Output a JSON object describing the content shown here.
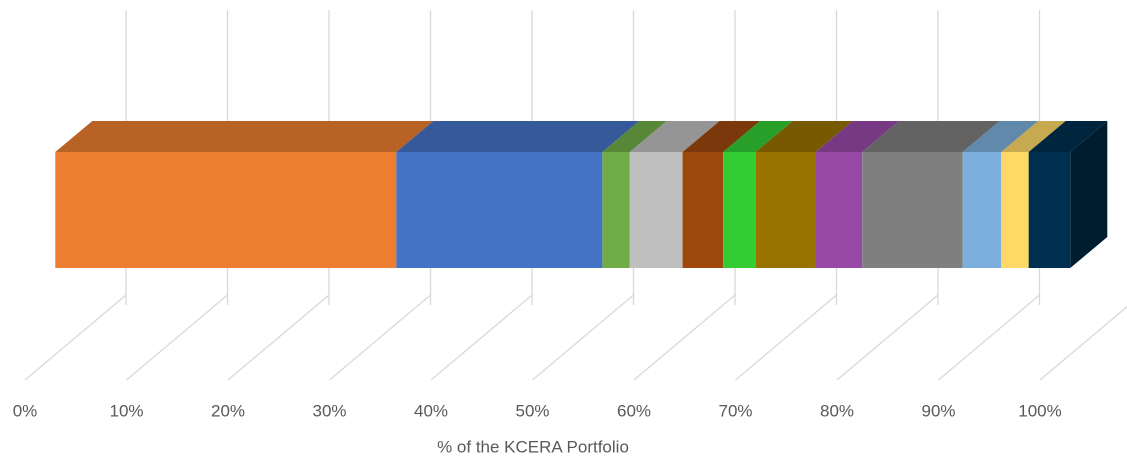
{
  "chart_data": {
    "type": "bar3d_stacked_horizontal",
    "x_label": "% of the KCERA Portfolio",
    "xlim": [
      0,
      100
    ],
    "xticks": [
      {
        "value": 0,
        "label": "0%"
      },
      {
        "value": 10,
        "label": "10%"
      },
      {
        "value": 20,
        "label": "20%"
      },
      {
        "value": 30,
        "label": "30%"
      },
      {
        "value": 40,
        "label": "40%"
      },
      {
        "value": 50,
        "label": "50%"
      },
      {
        "value": 60,
        "label": "60%"
      },
      {
        "value": 70,
        "label": "70%"
      },
      {
        "value": 80,
        "label": "80%"
      },
      {
        "value": 90,
        "label": "90%"
      },
      {
        "value": 100,
        "label": "100%"
      }
    ],
    "grid": true,
    "series": [
      {
        "color": "#ED7D31",
        "values": [
          33.6
        ]
      },
      {
        "color": "#4472C4",
        "values": [
          20.3
        ]
      },
      {
        "color": "#70AD47",
        "values": [
          2.7
        ]
      },
      {
        "color": "#BFBFBF",
        "values": [
          5.2
        ]
      },
      {
        "color": "#9E480E",
        "values": [
          4.0
        ]
      },
      {
        "color": "#33CC33",
        "values": [
          3.2
        ]
      },
      {
        "color": "#997300",
        "values": [
          5.9
        ]
      },
      {
        "color": "#9849A8",
        "values": [
          4.6
        ]
      },
      {
        "color": "#7F7F7F",
        "values": [
          9.9
        ]
      },
      {
        "color": "#7CAFDD",
        "values": [
          3.8
        ]
      },
      {
        "color": "#FFD966",
        "values": [
          2.7
        ]
      },
      {
        "color": "#003050",
        "values": [
          4.1
        ]
      }
    ]
  }
}
